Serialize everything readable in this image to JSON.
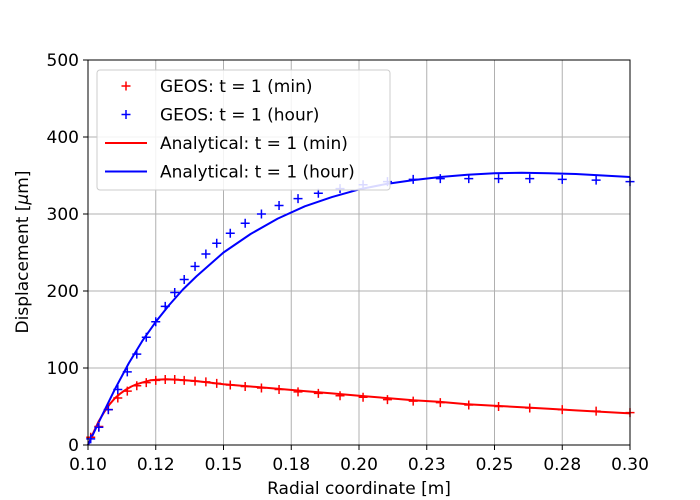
{
  "chart_data": {
    "type": "line",
    "xlabel": "Radial coordinate [m]",
    "ylabel_prefix": "Displacement [",
    "ylabel_symbol": "μ",
    "ylabel_suffix": "m]",
    "xlim": [
      0.1,
      0.3
    ],
    "ylim": [
      0,
      500
    ],
    "x_ticks": [
      0.1,
      0.125,
      0.15,
      0.175,
      0.2,
      0.225,
      0.25,
      0.275,
      0.3
    ],
    "x_tick_labels": [
      "0.10",
      "0.12",
      "0.15",
      "0.18",
      "0.20",
      "0.23",
      "0.25",
      "0.28",
      "0.30"
    ],
    "y_ticks": [
      0,
      100,
      200,
      300,
      400,
      500
    ],
    "y_tick_labels": [
      "0",
      "100",
      "200",
      "300",
      "400",
      "500"
    ],
    "grid": true,
    "legend_position": "upper-left",
    "series": [
      {
        "name": "GEOS: t = 1 (min)",
        "style": "marker",
        "marker": "+",
        "color": "#ff0000",
        "x": [
          0.101,
          0.104,
          0.1075,
          0.111,
          0.1145,
          0.118,
          0.1215,
          0.125,
          0.1285,
          0.132,
          0.1355,
          0.1395,
          0.1435,
          0.1475,
          0.1525,
          0.158,
          0.164,
          0.1705,
          0.1775,
          0.185,
          0.193,
          0.2015,
          0.2105,
          0.22,
          0.23,
          0.2405,
          0.2515,
          0.263,
          0.275,
          0.2875,
          0.3
        ],
        "y": [
          10,
          24,
          46,
          61,
          70,
          77,
          81,
          84,
          85,
          85,
          84,
          83,
          82,
          80,
          78,
          76,
          74,
          72,
          69,
          67,
          64,
          62,
          59,
          57,
          55,
          52,
          50,
          48,
          46,
          44,
          42
        ]
      },
      {
        "name": "GEOS: t = 1 (hour)",
        "style": "marker",
        "marker": "+",
        "color": "#0000ff",
        "x": [
          0.101,
          0.104,
          0.1075,
          0.111,
          0.1145,
          0.118,
          0.1215,
          0.125,
          0.1285,
          0.132,
          0.1355,
          0.1395,
          0.1435,
          0.1475,
          0.1525,
          0.158,
          0.164,
          0.1705,
          0.1775,
          0.185,
          0.193,
          0.2015,
          0.2105,
          0.22,
          0.23,
          0.2405,
          0.2515,
          0.263,
          0.275,
          0.2875,
          0.3
        ],
        "y": [
          8,
          23,
          46,
          72,
          95,
          118,
          140,
          160,
          180,
          198,
          215,
          232,
          248,
          262,
          275,
          288,
          300,
          311,
          320,
          327,
          333,
          338,
          342,
          345,
          346,
          346,
          346,
          346,
          345,
          344,
          342
        ]
      },
      {
        "name": "Analytical: t = 1 (min)",
        "style": "line",
        "color": "#ff0000",
        "x": [
          0.1,
          0.102,
          0.104,
          0.106,
          0.108,
          0.11,
          0.112,
          0.114,
          0.116,
          0.118,
          0.12,
          0.123,
          0.126,
          0.129,
          0.132,
          0.136,
          0.14,
          0.145,
          0.15,
          0.16,
          0.17,
          0.18,
          0.19,
          0.2,
          0.21,
          0.22,
          0.23,
          0.24,
          0.25,
          0.26,
          0.27,
          0.28,
          0.29,
          0.3
        ],
        "y": [
          0,
          16,
          31,
          43,
          53,
          61,
          67,
          72,
          76,
          79,
          81,
          84,
          85,
          85.5,
          85,
          84,
          83,
          81,
          79,
          76,
          73,
          70,
          67,
          64,
          61,
          58,
          56,
          53,
          51,
          49,
          47,
          45,
          43,
          41
        ]
      },
      {
        "name": "Analytical: t = 1 (hour)",
        "style": "line",
        "color": "#0000ff",
        "x": [
          0.1,
          0.105,
          0.11,
          0.115,
          0.12,
          0.125,
          0.13,
          0.135,
          0.14,
          0.15,
          0.16,
          0.17,
          0.18,
          0.19,
          0.2,
          0.21,
          0.22,
          0.23,
          0.24,
          0.25,
          0.26,
          0.27,
          0.28,
          0.29,
          0.3
        ],
        "y": [
          0,
          37,
          73,
          106,
          135,
          160,
          182,
          202,
          219,
          250,
          274,
          294,
          310,
          322,
          332,
          339,
          344,
          348,
          351,
          353,
          353.5,
          353,
          352,
          350,
          348
        ]
      }
    ]
  }
}
